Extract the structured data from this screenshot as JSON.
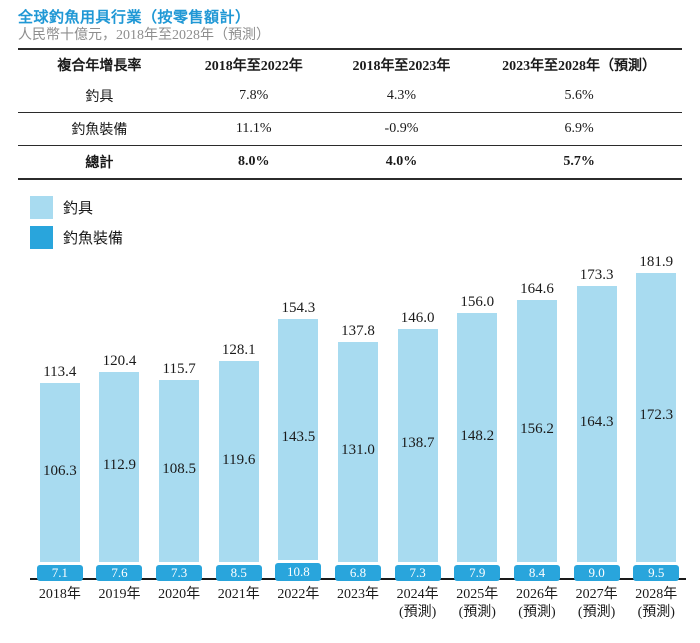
{
  "header": {
    "title": "全球釣魚用具行業（按零售額計）",
    "subtitle": "人民幣十億元，2018年至2028年（預測）"
  },
  "table": {
    "headers": [
      "複合年增長率",
      "2018年至2022年",
      "2018年至2023年",
      "2023年至2028年（預測）"
    ],
    "rows": [
      {
        "label": "釣具",
        "values": [
          "7.8%",
          "4.3%",
          "5.6%"
        ]
      },
      {
        "label": "釣魚裝備",
        "values": [
          "11.1%",
          "-0.9%",
          "6.9%"
        ]
      },
      {
        "label": "總計",
        "values": [
          "8.0%",
          "4.0%",
          "5.7%"
        ]
      }
    ]
  },
  "legend": [
    {
      "label": "釣具",
      "color": "#A8DBF0"
    },
    {
      "label": "釣魚裝備",
      "color": "#29A5DC"
    }
  ],
  "colors": {
    "tackle_light_blue": "#A8DBF0",
    "gear_dark_blue": "#29A5DC",
    "title_blue": "#2098D5",
    "subtitle_gray": "#8E8E8E"
  },
  "chart_data": {
    "type": "bar",
    "stacked": true,
    "title": "全球釣魚用具行業（按零售額計）",
    "ylabel": "人民幣十億元",
    "y_axis_visible": false,
    "grid": false,
    "legend_position": "top-left",
    "ylim": [
      0,
      195
    ],
    "categories": [
      {
        "label": "2018年",
        "sub": ""
      },
      {
        "label": "2019年",
        "sub": ""
      },
      {
        "label": "2020年",
        "sub": ""
      },
      {
        "label": "2021年",
        "sub": ""
      },
      {
        "label": "2022年",
        "sub": ""
      },
      {
        "label": "2023年",
        "sub": ""
      },
      {
        "label": "2024年",
        "sub": "(預測)"
      },
      {
        "label": "2025年",
        "sub": "(預測)"
      },
      {
        "label": "2026年",
        "sub": "(預測)"
      },
      {
        "label": "2027年",
        "sub": "(預測)"
      },
      {
        "label": "2028年",
        "sub": "(預測)"
      }
    ],
    "series": [
      {
        "name": "釣具",
        "color": "#A8DBF0",
        "values": [
          106.3,
          112.9,
          108.5,
          119.6,
          143.5,
          131.0,
          138.7,
          148.2,
          156.2,
          164.3,
          172.3
        ]
      },
      {
        "name": "釣魚裝備",
        "color": "#29A5DC",
        "values": [
          7.1,
          7.6,
          7.3,
          8.5,
          10.8,
          6.8,
          7.3,
          7.9,
          8.4,
          9.0,
          9.5
        ]
      }
    ],
    "totals": [
      113.4,
      120.4,
      115.7,
      128.1,
      154.3,
      137.8,
      146.0,
      156.0,
      164.6,
      173.3,
      181.9
    ]
  }
}
